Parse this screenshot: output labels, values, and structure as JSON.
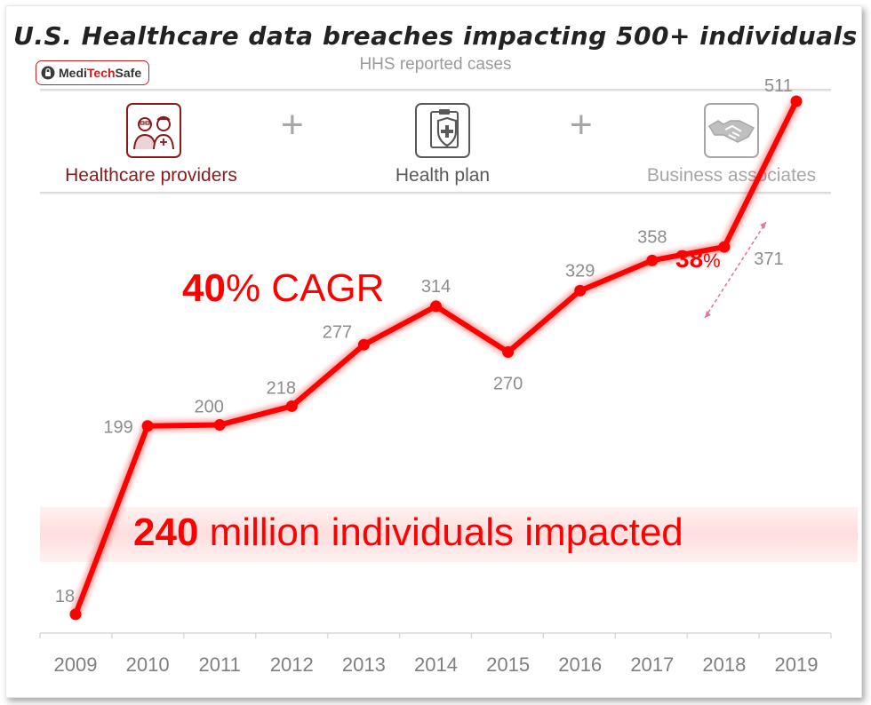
{
  "header": {
    "title": "U.S. Healthcare data breaches impacting 500+ individuals",
    "subtitle": "HHS reported cases"
  },
  "logo": {
    "part1": "Medi",
    "part2": "Tech",
    "part3": "Safe"
  },
  "categories_banner": {
    "items": [
      {
        "label": "Healthcare providers",
        "icon": "healthcare-workers-icon",
        "color": "#8b1a1a"
      },
      {
        "label": "Health plan",
        "icon": "shield-clipboard-icon",
        "color": "#595959"
      },
      {
        "label": "Business associates",
        "icon": "handshake-icon",
        "color": "#a6a6a6"
      }
    ],
    "plus": "+"
  },
  "callouts": {
    "cagr_value": "40",
    "cagr_rest": "% CAGR",
    "growth_value": "38",
    "growth_unit": "%",
    "impact_value": "240",
    "impact_rest": " million individuals impacted"
  },
  "colors": {
    "line": "#ff0000",
    "axis_text": "#7f7f7f",
    "value_text": "#8c8c8c"
  },
  "chart_data": {
    "type": "line",
    "x": [
      "2009",
      "2010",
      "2011",
      "2012",
      "2013",
      "2014",
      "2015",
      "2016",
      "2017",
      "2018",
      "2019"
    ],
    "series": [
      {
        "values": [
          18,
          199,
          200,
          218,
          277,
          314,
          270,
          329,
          358,
          371,
          511
        ]
      }
    ],
    "data_labels": [
      "18",
      "199",
      "200",
      "218",
      "277",
      "314",
      "270",
      "329",
      "358",
      "371",
      "511"
    ],
    "ylim": [
      0,
      540
    ],
    "grid": false,
    "legend": "none"
  }
}
